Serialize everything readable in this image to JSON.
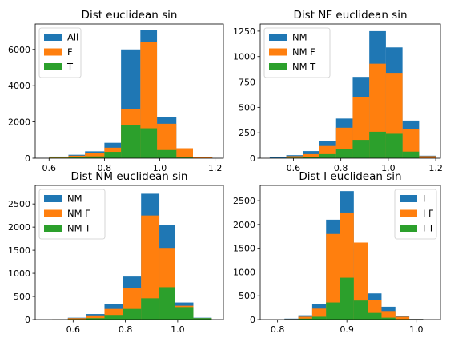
{
  "colors": {
    "blue": "#1f77b4",
    "orange": "#ff7f0e",
    "green": "#2ca02c"
  },
  "chart_data": [
    {
      "type": "bar",
      "title": "Dist euclidean sin",
      "xlabel": "",
      "ylabel": "",
      "xlim": [
        0.55,
        1.23
      ],
      "ylim": [
        0,
        7400
      ],
      "xticks": [
        0.6,
        0.8,
        1.0,
        1.2
      ],
      "yticks": [
        0,
        2000,
        4000,
        6000
      ],
      "legend": "top-left",
      "series": [
        {
          "name": "All",
          "color": "blue",
          "bins": [
            [
              0.54,
              0.6,
              10
            ],
            [
              0.6,
              0.67,
              90
            ],
            [
              0.67,
              0.73,
              190
            ],
            [
              0.73,
              0.8,
              380
            ],
            [
              0.8,
              0.86,
              850
            ],
            [
              0.86,
              0.93,
              6000
            ],
            [
              0.93,
              0.99,
              7050
            ],
            [
              0.99,
              1.06,
              2250
            ],
            [
              1.06,
              1.12,
              550
            ],
            [
              1.12,
              1.19,
              70
            ]
          ]
        },
        {
          "name": "F",
          "color": "orange",
          "bins": [
            [
              0.54,
              0.6,
              5
            ],
            [
              0.6,
              0.67,
              50
            ],
            [
              0.67,
              0.73,
              140
            ],
            [
              0.73,
              0.8,
              300
            ],
            [
              0.8,
              0.86,
              580
            ],
            [
              0.86,
              0.93,
              2700
            ],
            [
              0.93,
              0.99,
              6400
            ],
            [
              0.99,
              1.06,
              1900
            ],
            [
              1.06,
              1.12,
              550
            ],
            [
              1.12,
              1.19,
              60
            ]
          ]
        },
        {
          "name": "T",
          "color": "green",
          "bins": [
            [
              0.6,
              0.67,
              30
            ],
            [
              0.67,
              0.73,
              60
            ],
            [
              0.73,
              0.8,
              100
            ],
            [
              0.8,
              0.86,
              350
            ],
            [
              0.86,
              0.93,
              1850
            ],
            [
              0.93,
              0.99,
              1650
            ],
            [
              0.99,
              1.06,
              450
            ],
            [
              1.06,
              1.12,
              40
            ]
          ]
        }
      ]
    },
    {
      "type": "bar",
      "title": "Dist NF euclidean sin",
      "xlabel": "",
      "ylabel": "",
      "xlim": [
        0.46,
        1.22
      ],
      "ylim": [
        0,
        1320
      ],
      "xticks": [
        0.6,
        0.8,
        1.0,
        1.2
      ],
      "yticks": [
        0,
        250,
        500,
        750,
        1000,
        1250
      ],
      "legend": "top-left",
      "series": [
        {
          "name": "NM",
          "color": "blue",
          "bins": [
            [
              0.5,
              0.57,
              10
            ],
            [
              0.57,
              0.64,
              30
            ],
            [
              0.64,
              0.71,
              70
            ],
            [
              0.71,
              0.78,
              170
            ],
            [
              0.78,
              0.85,
              390
            ],
            [
              0.85,
              0.92,
              800
            ],
            [
              0.92,
              0.99,
              1250
            ],
            [
              0.99,
              1.06,
              1090
            ],
            [
              1.06,
              1.13,
              370
            ],
            [
              1.13,
              1.2,
              25
            ]
          ]
        },
        {
          "name": "NM F",
          "color": "orange",
          "bins": [
            [
              0.57,
              0.64,
              20
            ],
            [
              0.64,
              0.71,
              40
            ],
            [
              0.71,
              0.78,
              120
            ],
            [
              0.78,
              0.85,
              300
            ],
            [
              0.85,
              0.92,
              600
            ],
            [
              0.92,
              0.99,
              930
            ],
            [
              0.99,
              1.06,
              840
            ],
            [
              1.06,
              1.13,
              290
            ],
            [
              1.13,
              1.2,
              20
            ]
          ]
        },
        {
          "name": "NM T",
          "color": "green",
          "bins": [
            [
              0.57,
              0.64,
              5
            ],
            [
              0.64,
              0.71,
              15
            ],
            [
              0.71,
              0.78,
              40
            ],
            [
              0.78,
              0.85,
              90
            ],
            [
              0.85,
              0.92,
              180
            ],
            [
              0.92,
              0.99,
              260
            ],
            [
              0.99,
              1.06,
              240
            ],
            [
              1.06,
              1.13,
              65
            ]
          ]
        }
      ]
    },
    {
      "type": "bar",
      "title": "Dist NM euclidean sin",
      "xlabel": "",
      "ylabel": "",
      "xlim": [
        0.455,
        1.175
      ],
      "ylim": [
        0,
        2900
      ],
      "xticks": [
        0.6,
        0.8,
        1.0
      ],
      "yticks": [
        0,
        500,
        1000,
        1500,
        2000,
        2500
      ],
      "legend": "top-left",
      "series": [
        {
          "name": "NM",
          "color": "blue",
          "bins": [
            [
              0.52,
              0.58,
              5
            ],
            [
              0.58,
              0.65,
              40
            ],
            [
              0.65,
              0.72,
              120
            ],
            [
              0.72,
              0.79,
              330
            ],
            [
              0.79,
              0.86,
              930
            ],
            [
              0.86,
              0.93,
              2720
            ],
            [
              0.93,
              0.99,
              2050
            ],
            [
              0.99,
              1.06,
              370
            ],
            [
              1.06,
              1.13,
              40
            ]
          ]
        },
        {
          "name": "NM F",
          "color": "orange",
          "bins": [
            [
              0.52,
              0.58,
              3
            ],
            [
              0.58,
              0.65,
              30
            ],
            [
              0.65,
              0.72,
              90
            ],
            [
              0.72,
              0.79,
              230
            ],
            [
              0.79,
              0.86,
              680
            ],
            [
              0.86,
              0.93,
              2250
            ],
            [
              0.93,
              0.99,
              1550
            ],
            [
              0.99,
              1.06,
              300
            ],
            [
              1.06,
              1.13,
              30
            ]
          ]
        },
        {
          "name": "NM T",
          "color": "green",
          "bins": [
            [
              0.58,
              0.65,
              10
            ],
            [
              0.65,
              0.72,
              30
            ],
            [
              0.72,
              0.79,
              100
            ],
            [
              0.79,
              0.86,
              230
            ],
            [
              0.86,
              0.93,
              460
            ],
            [
              0.93,
              0.99,
              700
            ],
            [
              0.99,
              1.06,
              270
            ],
            [
              1.06,
              1.13,
              30
            ]
          ]
        }
      ]
    },
    {
      "type": "bar",
      "title": "Dist I euclidean sin",
      "xlabel": "",
      "ylabel": "",
      "xlim": [
        0.775,
        1.035
      ],
      "ylim": [
        0,
        2820
      ],
      "xticks": [
        0.8,
        0.9,
        1.0
      ],
      "yticks": [
        0,
        500,
        1000,
        1500,
        2000,
        2500
      ],
      "legend": "top-right",
      "series": [
        {
          "name": "I",
          "color": "blue",
          "bins": [
            [
              0.81,
              0.83,
              20
            ],
            [
              0.83,
              0.85,
              90
            ],
            [
              0.85,
              0.87,
              330
            ],
            [
              0.87,
              0.89,
              2100
            ],
            [
              0.89,
              0.91,
              2700
            ],
            [
              0.91,
              0.93,
              1500
            ],
            [
              0.93,
              0.95,
              550
            ],
            [
              0.95,
              0.97,
              270
            ],
            [
              0.97,
              0.99,
              80
            ],
            [
              0.99,
              1.01,
              15
            ]
          ]
        },
        {
          "name": "I F",
          "color": "orange",
          "bins": [
            [
              0.81,
              0.83,
              10
            ],
            [
              0.83,
              0.85,
              60
            ],
            [
              0.85,
              0.87,
              230
            ],
            [
              0.87,
              0.89,
              1800
            ],
            [
              0.89,
              0.91,
              2250
            ],
            [
              0.91,
              0.93,
              1620
            ],
            [
              0.93,
              0.95,
              410
            ],
            [
              0.95,
              0.97,
              180
            ],
            [
              0.97,
              0.99,
              60
            ],
            [
              0.99,
              1.01,
              10
            ]
          ]
        },
        {
          "name": "I T",
          "color": "green",
          "bins": [
            [
              0.83,
              0.85,
              20
            ],
            [
              0.85,
              0.87,
              60
            ],
            [
              0.87,
              0.89,
              360
            ],
            [
              0.89,
              0.91,
              880
            ],
            [
              0.91,
              0.93,
              400
            ],
            [
              0.93,
              0.95,
              140
            ],
            [
              0.95,
              0.97,
              40
            ],
            [
              0.97,
              0.99,
              10
            ]
          ]
        }
      ]
    }
  ]
}
